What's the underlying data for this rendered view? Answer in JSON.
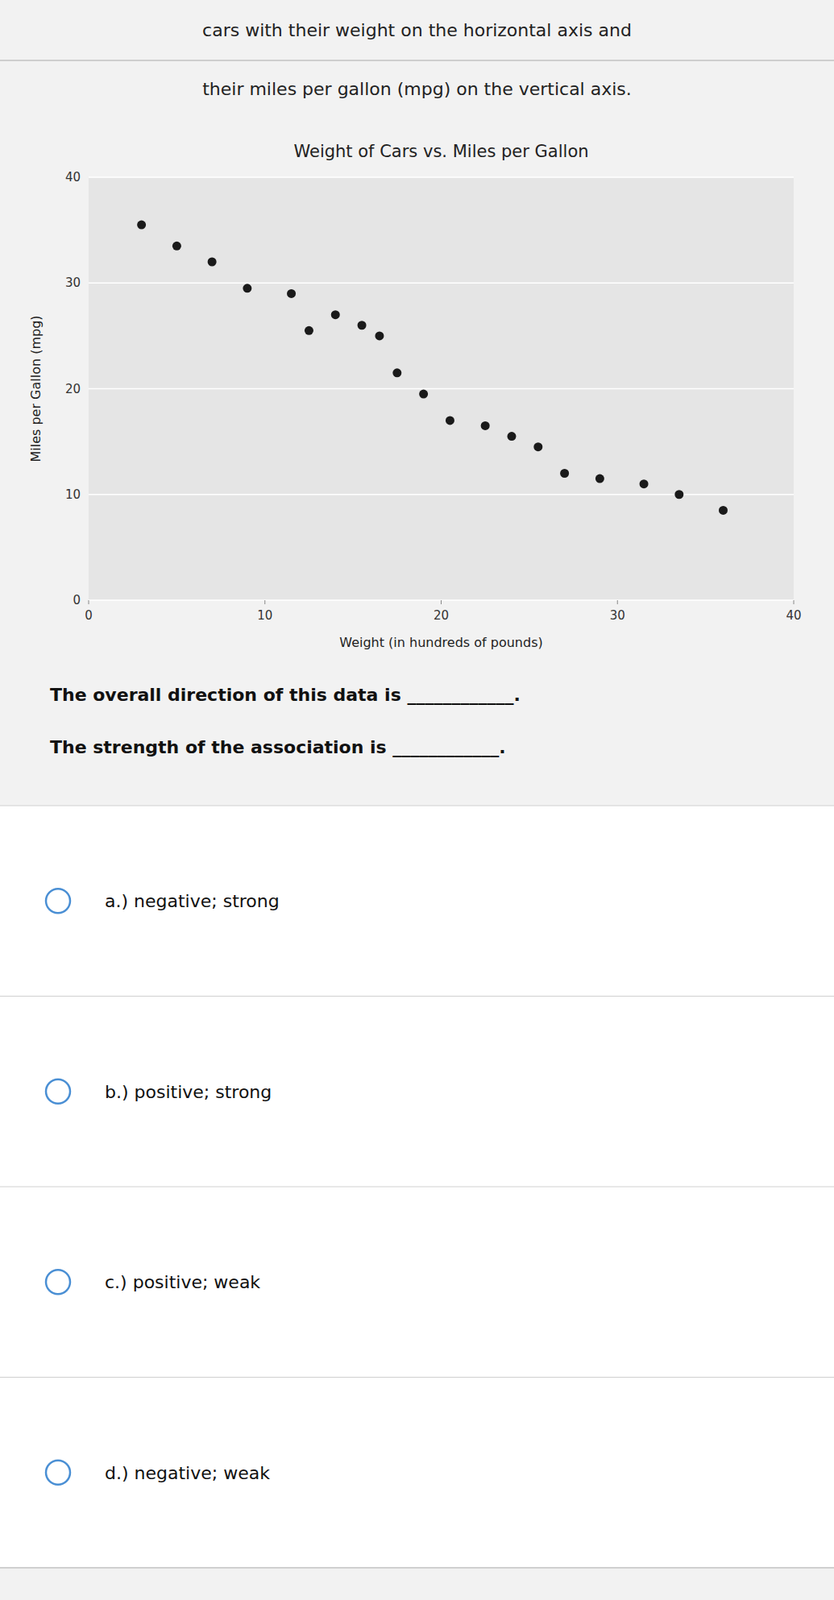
{
  "header": [
    "cars with their weight on the horizontal axis and",
    "their miles per gallon (mpg) on the vertical axis."
  ],
  "questions": [
    "The overall direction of this data is ____________.",
    "The strength of the association is ____________."
  ],
  "choices": [
    "a.)  negative; strong",
    "b.)  positive; strong",
    "c.)  positive; weak",
    "d.)  negative; weak"
  ],
  "chart_data": {
    "type": "scatter",
    "title": "Weight of Cars vs. Miles per Gallon",
    "x_label": "Weight (in hundreds of pounds)",
    "y_label": "Miles per Gallon (mpg)",
    "x": [
      3.0,
      5.0,
      7.0,
      9.0,
      11.5,
      12.5,
      14.0,
      15.5,
      16.5,
      17.5,
      19.0,
      20.5,
      22.5,
      24.0,
      25.5,
      27.0,
      29.0,
      31.5,
      33.5,
      36.0
    ],
    "values": [
      35.5,
      33.5,
      32.0,
      29.5,
      29.0,
      25.5,
      27.0,
      26.0,
      25.0,
      21.5,
      19.5,
      17.0,
      16.5,
      15.5,
      14.5,
      12.0,
      11.5,
      11.0,
      10.0,
      8.5
    ],
    "color": "#1a1a1a",
    "xlim": [
      0,
      40
    ],
    "ylim": [
      0,
      40
    ],
    "xticks": [
      0,
      10,
      20,
      30,
      40
    ],
    "yticks": [
      0,
      10,
      20,
      30,
      40
    ],
    "grid": true
  }
}
